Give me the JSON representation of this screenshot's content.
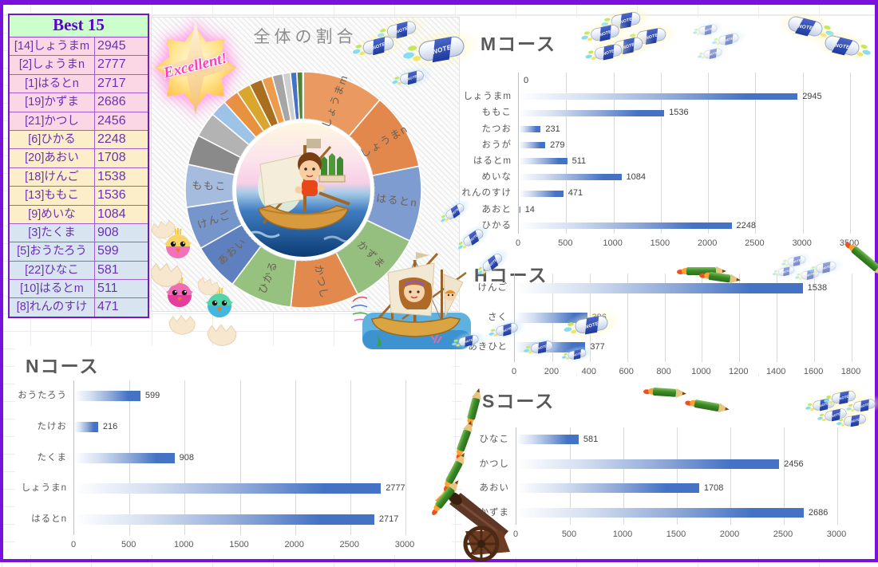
{
  "window": {
    "border_color": "#7A10DC",
    "background": "#FFFFFF",
    "gridline_color": "#ECECEC"
  },
  "leaderboard": {
    "title": "Best 15",
    "rows": [
      {
        "name": "[14]しょうまm",
        "score": "2945",
        "tier": "pink"
      },
      {
        "name": "[2]しょうまn",
        "score": "2777",
        "tier": "pink"
      },
      {
        "name": "[1]はるとn",
        "score": "2717",
        "tier": "pink"
      },
      {
        "name": "[19]かずま",
        "score": "2686",
        "tier": "pink"
      },
      {
        "name": "[21]かつし",
        "score": "2456",
        "tier": "pink"
      },
      {
        "name": "[6]ひかる",
        "score": "2248",
        "tier": "yellow"
      },
      {
        "name": "[20]あおい",
        "score": "1708",
        "tier": "yellow"
      },
      {
        "name": "[18]けんご",
        "score": "1538",
        "tier": "yellow"
      },
      {
        "name": "[13]ももこ",
        "score": "1536",
        "tier": "yellow"
      },
      {
        "name": "[9]めいな",
        "score": "1084",
        "tier": "yellow"
      },
      {
        "name": "[3]たくま",
        "score": "908",
        "tier": "blue"
      },
      {
        "name": "[5]おうたろう",
        "score": "599",
        "tier": "blue"
      },
      {
        "name": "[22]ひなこ",
        "score": "581",
        "tier": "blue"
      },
      {
        "name": "[10]はるとm",
        "score": "511",
        "tier": "blue"
      },
      {
        "name": "[8]れんのすけ",
        "score": "471",
        "tier": "blue"
      }
    ]
  },
  "decor": {
    "badge_label": "Excellent!",
    "note_label": "NOTE"
  },
  "chart_data": [
    {
      "type": "pie",
      "title": "全体の割合",
      "labels": [
        "しょうまm",
        "しょうまn",
        "はるとn",
        "かずま",
        "かつし",
        "ひかる",
        "あおい",
        "けんご",
        "ももこ",
        "めいな",
        "たくま",
        "おうたろう",
        "ひなこ",
        "はるとm",
        "れんのすけ",
        "さく",
        "あきひと",
        "おうが",
        "たつお",
        "たけお",
        "あおと"
      ],
      "values": [
        2945,
        2777,
        2717,
        2686,
        2456,
        2248,
        1708,
        1538,
        1536,
        1084,
        908,
        599,
        581,
        511,
        471,
        386,
        377,
        279,
        231,
        216,
        14
      ],
      "colors": [
        "#EA9A60",
        "#E2884C",
        "#7F9CD0",
        "#94BF7F",
        "#E28A4E",
        "#97C17F",
        "#5E80BE",
        "#7695CA",
        "#A5BCDF",
        "#8A8A8A",
        "#B3B3B3",
        "#9DC3E6",
        "#E8913F",
        "#D9A62E",
        "#A8701E",
        "#ED9B4C",
        "#A6A6A6",
        "#CFCFCF",
        "#4472C4",
        "#548235",
        "#FFC94D"
      ],
      "labeled_count": 9,
      "legend": "none",
      "donut": true
    },
    {
      "type": "bar",
      "id": "M",
      "title": "Mコース",
      "categories": [
        "",
        "しょうまm",
        "ももこ",
        "たつお",
        "おうが",
        "はるとm",
        "めいな",
        "れんのすけ",
        "あおと",
        "ひかる"
      ],
      "values": [
        0,
        2945,
        1536,
        231,
        279,
        511,
        1084,
        471,
        14,
        2248
      ],
      "xlim": [
        0,
        3500
      ],
      "xstep": 500,
      "bar_color": "#4472C4",
      "grid": true,
      "legend": "none"
    },
    {
      "type": "bar",
      "id": "H",
      "title": "Hコース",
      "categories": [
        "けんご",
        "さく",
        "あきひと"
      ],
      "values": [
        1538,
        386,
        377
      ],
      "xlim": [
        0,
        1800
      ],
      "xstep": 200,
      "bar_color": "#4472C4",
      "grid": true,
      "legend": "none"
    },
    {
      "type": "bar",
      "id": "N",
      "title": "Nコース",
      "categories": [
        "おうたろう",
        "たけお",
        "たくま",
        "しょうまn",
        "はるとn"
      ],
      "values": [
        599,
        216,
        908,
        2777,
        2717
      ],
      "xlim": [
        0,
        3000
      ],
      "xstep": 500,
      "bar_color": "#4472C4",
      "grid": true,
      "legend": "none"
    },
    {
      "type": "bar",
      "id": "S",
      "title": "Sコース",
      "categories": [
        "ひなこ",
        "かつし",
        "あおい",
        "かずま"
      ],
      "values": [
        581,
        2456,
        1708,
        2686
      ],
      "xlim": [
        0,
        3000
      ],
      "xstep": 500,
      "bar_color": "#4472C4",
      "grid": true,
      "legend": "none"
    }
  ]
}
